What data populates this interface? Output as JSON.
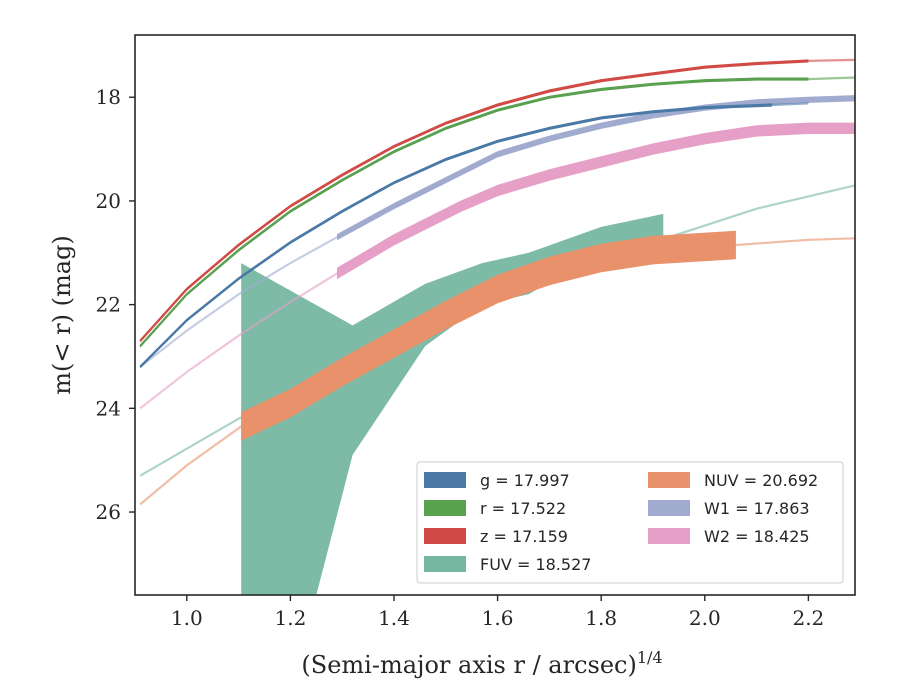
{
  "chart_data": {
    "type": "line",
    "title": "",
    "xlabel": "(Semi-major axis r / arcsec)",
    "xlabel_sup": "1/4",
    "ylabel": "m(< r) (mag)",
    "xlim": [
      0.9,
      2.29
    ],
    "ylim": [
      27.6,
      16.8
    ],
    "y_inverted": true,
    "xticks": [
      1.0,
      1.2,
      1.4,
      1.6,
      1.8,
      2.0,
      2.2
    ],
    "xtick_labels": [
      "1.0",
      "1.2",
      "1.4",
      "1.6",
      "1.8",
      "2.0",
      "2.2"
    ],
    "yticks": [
      18,
      20,
      22,
      24,
      26
    ],
    "ytick_labels": [
      "18",
      "20",
      "22",
      "24",
      "26"
    ],
    "grid": false,
    "legend_position": "lower-right",
    "series": [
      {
        "id": "g",
        "legend_label": "g = 17.997",
        "color": "#4a79a6",
        "data_x": [
          0.91,
          1.0,
          1.1,
          1.2,
          1.3,
          1.4,
          1.5,
          1.6,
          1.7,
          1.8,
          1.9,
          2.0,
          2.13
        ],
        "data_y": [
          23.2,
          22.3,
          21.5,
          20.8,
          20.2,
          19.65,
          19.2,
          18.85,
          18.6,
          18.4,
          18.28,
          18.2,
          18.15
        ],
        "width": 0.06,
        "model_x": [
          2.13,
          2.2
        ],
        "model_y": [
          18.15,
          18.12
        ]
      },
      {
        "id": "r",
        "legend_label": "r = 17.522",
        "color": "#59a14f",
        "data_x": [
          0.91,
          1.0,
          1.1,
          1.2,
          1.3,
          1.4,
          1.5,
          1.6,
          1.7,
          1.8,
          1.9,
          2.0,
          2.1,
          2.2
        ],
        "data_y": [
          22.8,
          21.8,
          20.95,
          20.2,
          19.6,
          19.05,
          18.6,
          18.25,
          18.0,
          17.85,
          17.75,
          17.68,
          17.65,
          17.65
        ],
        "width": 0.06,
        "model_x": [
          2.2,
          2.29
        ],
        "model_y": [
          17.65,
          17.62
        ]
      },
      {
        "id": "z",
        "legend_label": "z = 17.159",
        "color": "#d14a46",
        "data_x": [
          0.91,
          1.0,
          1.1,
          1.2,
          1.3,
          1.4,
          1.5,
          1.6,
          1.7,
          1.8,
          1.9,
          2.0,
          2.1,
          2.2
        ],
        "data_y": [
          22.7,
          21.7,
          20.85,
          20.1,
          19.5,
          18.95,
          18.5,
          18.15,
          17.88,
          17.68,
          17.55,
          17.42,
          17.35,
          17.3
        ],
        "width": 0.06,
        "model_x": [
          2.2,
          2.29
        ],
        "model_y": [
          17.3,
          17.28
        ]
      },
      {
        "id": "FUV",
        "legend_label": "FUV = 18.527",
        "color": "#76b7a2",
        "upper_x": [
          1.105,
          1.32,
          1.46,
          1.57,
          1.66,
          1.8,
          1.92
        ],
        "upper_y": [
          21.2,
          22.4,
          21.6,
          21.2,
          21.0,
          20.5,
          20.25
        ],
        "lower_x": [
          1.92,
          1.8,
          1.66,
          1.57,
          1.46,
          1.32,
          1.25,
          1.105
        ],
        "lower_y": [
          20.7,
          21.0,
          21.8,
          22.0,
          22.8,
          24.9,
          27.6,
          27.6
        ],
        "model_x": [
          0.91,
          1.1,
          1.3,
          1.5,
          1.7,
          1.9,
          2.1,
          2.29
        ],
        "model_y": [
          25.3,
          24.2,
          23.2,
          22.3,
          21.5,
          20.8,
          20.15,
          19.7
        ]
      },
      {
        "id": "NUV",
        "legend_label": "NUV = 20.692",
        "color": "#e8916a",
        "data_x": [
          1.105,
          1.2,
          1.3,
          1.4,
          1.5,
          1.6,
          1.7,
          1.8,
          1.9,
          2.06
        ],
        "data_y": [
          24.35,
          23.9,
          23.3,
          22.75,
          22.2,
          21.7,
          21.35,
          21.1,
          20.95,
          20.85
        ],
        "width": 0.55,
        "model_x": [
          0.91,
          1.0,
          1.105,
          1.2,
          1.3,
          1.4,
          1.5,
          1.6,
          1.7,
          1.8,
          1.9,
          2.06,
          2.2,
          2.29
        ],
        "model_y": [
          25.85,
          25.1,
          24.35,
          23.9,
          23.3,
          22.75,
          22.2,
          21.7,
          21.35,
          21.1,
          20.95,
          20.85,
          20.75,
          20.72
        ]
      },
      {
        "id": "W1",
        "legend_label": "W1 = 17.863",
        "color": "#a0abcf",
        "data_x": [
          1.29,
          1.4,
          1.53,
          1.6,
          1.7,
          1.8,
          1.9,
          2.0,
          2.1,
          2.2,
          2.29
        ],
        "data_y": [
          20.7,
          20.1,
          19.45,
          19.1,
          18.8,
          18.55,
          18.35,
          18.2,
          18.1,
          18.05,
          18.02
        ],
        "width": 0.12,
        "model_x": [
          0.91,
          1.0,
          1.1,
          1.2,
          1.29
        ],
        "model_y": [
          23.2,
          22.5,
          21.8,
          21.2,
          20.7
        ]
      },
      {
        "id": "W2",
        "legend_label": "W2 = 18.425",
        "color": "#e6a0c8",
        "data_x": [
          1.29,
          1.4,
          1.53,
          1.6,
          1.7,
          1.8,
          1.9,
          2.0,
          2.1,
          2.2,
          2.29
        ],
        "data_y": [
          21.4,
          20.75,
          20.1,
          19.8,
          19.5,
          19.25,
          19.0,
          18.8,
          18.65,
          18.6,
          18.6
        ],
        "width": 0.22,
        "model_x": [
          0.91,
          1.0,
          1.1,
          1.2,
          1.29
        ],
        "model_y": [
          24.0,
          23.3,
          22.6,
          21.95,
          21.4
        ]
      }
    ]
  }
}
